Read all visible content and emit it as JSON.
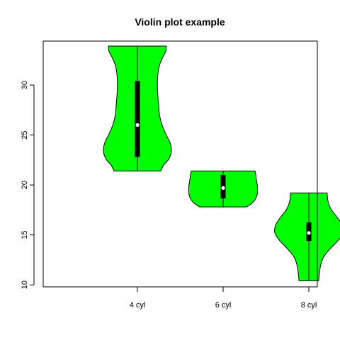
{
  "chart_data": {
    "type": "violin",
    "title": "Violin plot example",
    "xlabel": "",
    "ylabel": "",
    "categories": [
      "4 cyl",
      "6 cyl",
      "8 cyl"
    ],
    "ylim": [
      9.8,
      34.4
    ],
    "yticks": [
      10,
      15,
      20,
      25,
      30
    ],
    "fill_color": "#00ff00",
    "box_color": "#000000",
    "median_color": "#ffffff",
    "violins": [
      {
        "category": "4 cyl",
        "min": 21.4,
        "q1": 22.8,
        "median": 26.0,
        "q3": 30.4,
        "max": 33.9,
        "profile": [
          [
            21.4,
            0.55
          ],
          [
            22.0,
            0.62
          ],
          [
            22.6,
            0.74
          ],
          [
            23.4,
            0.8
          ],
          [
            24.2,
            0.77
          ],
          [
            25.0,
            0.68
          ],
          [
            26.0,
            0.58
          ],
          [
            27.0,
            0.52
          ],
          [
            28.0,
            0.5
          ],
          [
            29.0,
            0.48
          ],
          [
            30.0,
            0.47
          ],
          [
            31.0,
            0.48
          ],
          [
            32.0,
            0.52
          ],
          [
            32.8,
            0.6
          ],
          [
            33.4,
            0.67
          ],
          [
            33.9,
            0.68
          ]
        ]
      },
      {
        "category": "6 cyl",
        "min": 17.8,
        "q1": 18.65,
        "median": 19.7,
        "q3": 21.0,
        "max": 21.4,
        "profile": [
          [
            17.8,
            0.55
          ],
          [
            18.1,
            0.66
          ],
          [
            18.5,
            0.75
          ],
          [
            19.0,
            0.8
          ],
          [
            19.6,
            0.81
          ],
          [
            20.1,
            0.8
          ],
          [
            20.6,
            0.78
          ],
          [
            21.0,
            0.77
          ],
          [
            21.4,
            0.75
          ]
        ]
      },
      {
        "category": "8 cyl",
        "min": 10.4,
        "q1": 14.4,
        "median": 15.2,
        "q3": 16.25,
        "max": 19.2,
        "profile": [
          [
            10.4,
            0.23
          ],
          [
            11.2,
            0.25
          ],
          [
            12.0,
            0.28
          ],
          [
            12.8,
            0.35
          ],
          [
            13.6,
            0.5
          ],
          [
            14.4,
            0.68
          ],
          [
            15.2,
            0.8
          ],
          [
            16.0,
            0.78
          ],
          [
            16.8,
            0.66
          ],
          [
            17.6,
            0.52
          ],
          [
            18.4,
            0.45
          ],
          [
            19.2,
            0.43
          ]
        ]
      }
    ]
  }
}
